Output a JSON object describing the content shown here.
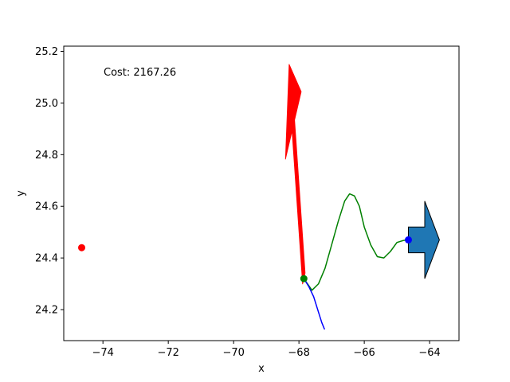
{
  "chart_data": {
    "type": "line",
    "xlabel": "x",
    "ylabel": "y",
    "xlim": [
      -75.2,
      -63.1
    ],
    "ylim": [
      24.08,
      25.22
    ],
    "grid": false,
    "xticks": [
      -74,
      -72,
      -70,
      -68,
      -66,
      -64
    ],
    "yticks": [
      24.2,
      24.4,
      24.6,
      24.8,
      25.0,
      25.2
    ],
    "xtick_labels": [
      "−74",
      "−72",
      "−70",
      "−68",
      "−66",
      "−64"
    ],
    "ytick_labels": [
      "24.2",
      "24.4",
      "24.6",
      "24.8",
      "25.0",
      "25.2"
    ],
    "annotation": "Cost: 2167.26",
    "series": [
      {
        "name": "green-path",
        "color": "#008000",
        "x": [
          -67.85,
          -67.6,
          -67.4,
          -67.2,
          -67.0,
          -66.8,
          -66.6,
          -66.45,
          -66.3,
          -66.15,
          -66.0,
          -65.8,
          -65.6,
          -65.4,
          -65.2,
          -65.0,
          -64.8,
          -64.65
        ],
        "y": [
          24.32,
          24.275,
          24.3,
          24.36,
          24.45,
          24.54,
          24.62,
          24.648,
          24.64,
          24.6,
          24.52,
          24.45,
          24.405,
          24.4,
          24.425,
          24.46,
          24.468,
          24.47
        ]
      },
      {
        "name": "blue-path",
        "color": "#0000ff",
        "x": [
          -67.85,
          -67.7,
          -67.55,
          -67.4,
          -67.3,
          -67.22
        ],
        "y": [
          24.32,
          24.29,
          24.25,
          24.19,
          24.15,
          24.125
        ]
      },
      {
        "name": "red-arrow",
        "color": "#ff0000",
        "type": "arrow",
        "tail": [
          -67.85,
          24.32
        ],
        "head": [
          -68.3,
          25.15
        ],
        "body_width": 0.09,
        "head_width": 0.55,
        "head_length": 0.27
      },
      {
        "name": "goal-arrow",
        "color": "#1f77b4",
        "type": "arrow",
        "tail": [
          -64.65,
          24.47
        ],
        "head": [
          -63.7,
          24.47
        ],
        "body_width": 0.1,
        "head_width": 0.3,
        "head_length": 0.45
      }
    ],
    "points": [
      {
        "name": "red-point",
        "x": -74.65,
        "y": 24.44,
        "color": "#ff0000"
      },
      {
        "name": "green-point",
        "x": -67.85,
        "y": 24.32,
        "color": "#008000"
      },
      {
        "name": "blue-point",
        "x": -64.65,
        "y": 24.47,
        "color": "#0000ff"
      }
    ]
  }
}
